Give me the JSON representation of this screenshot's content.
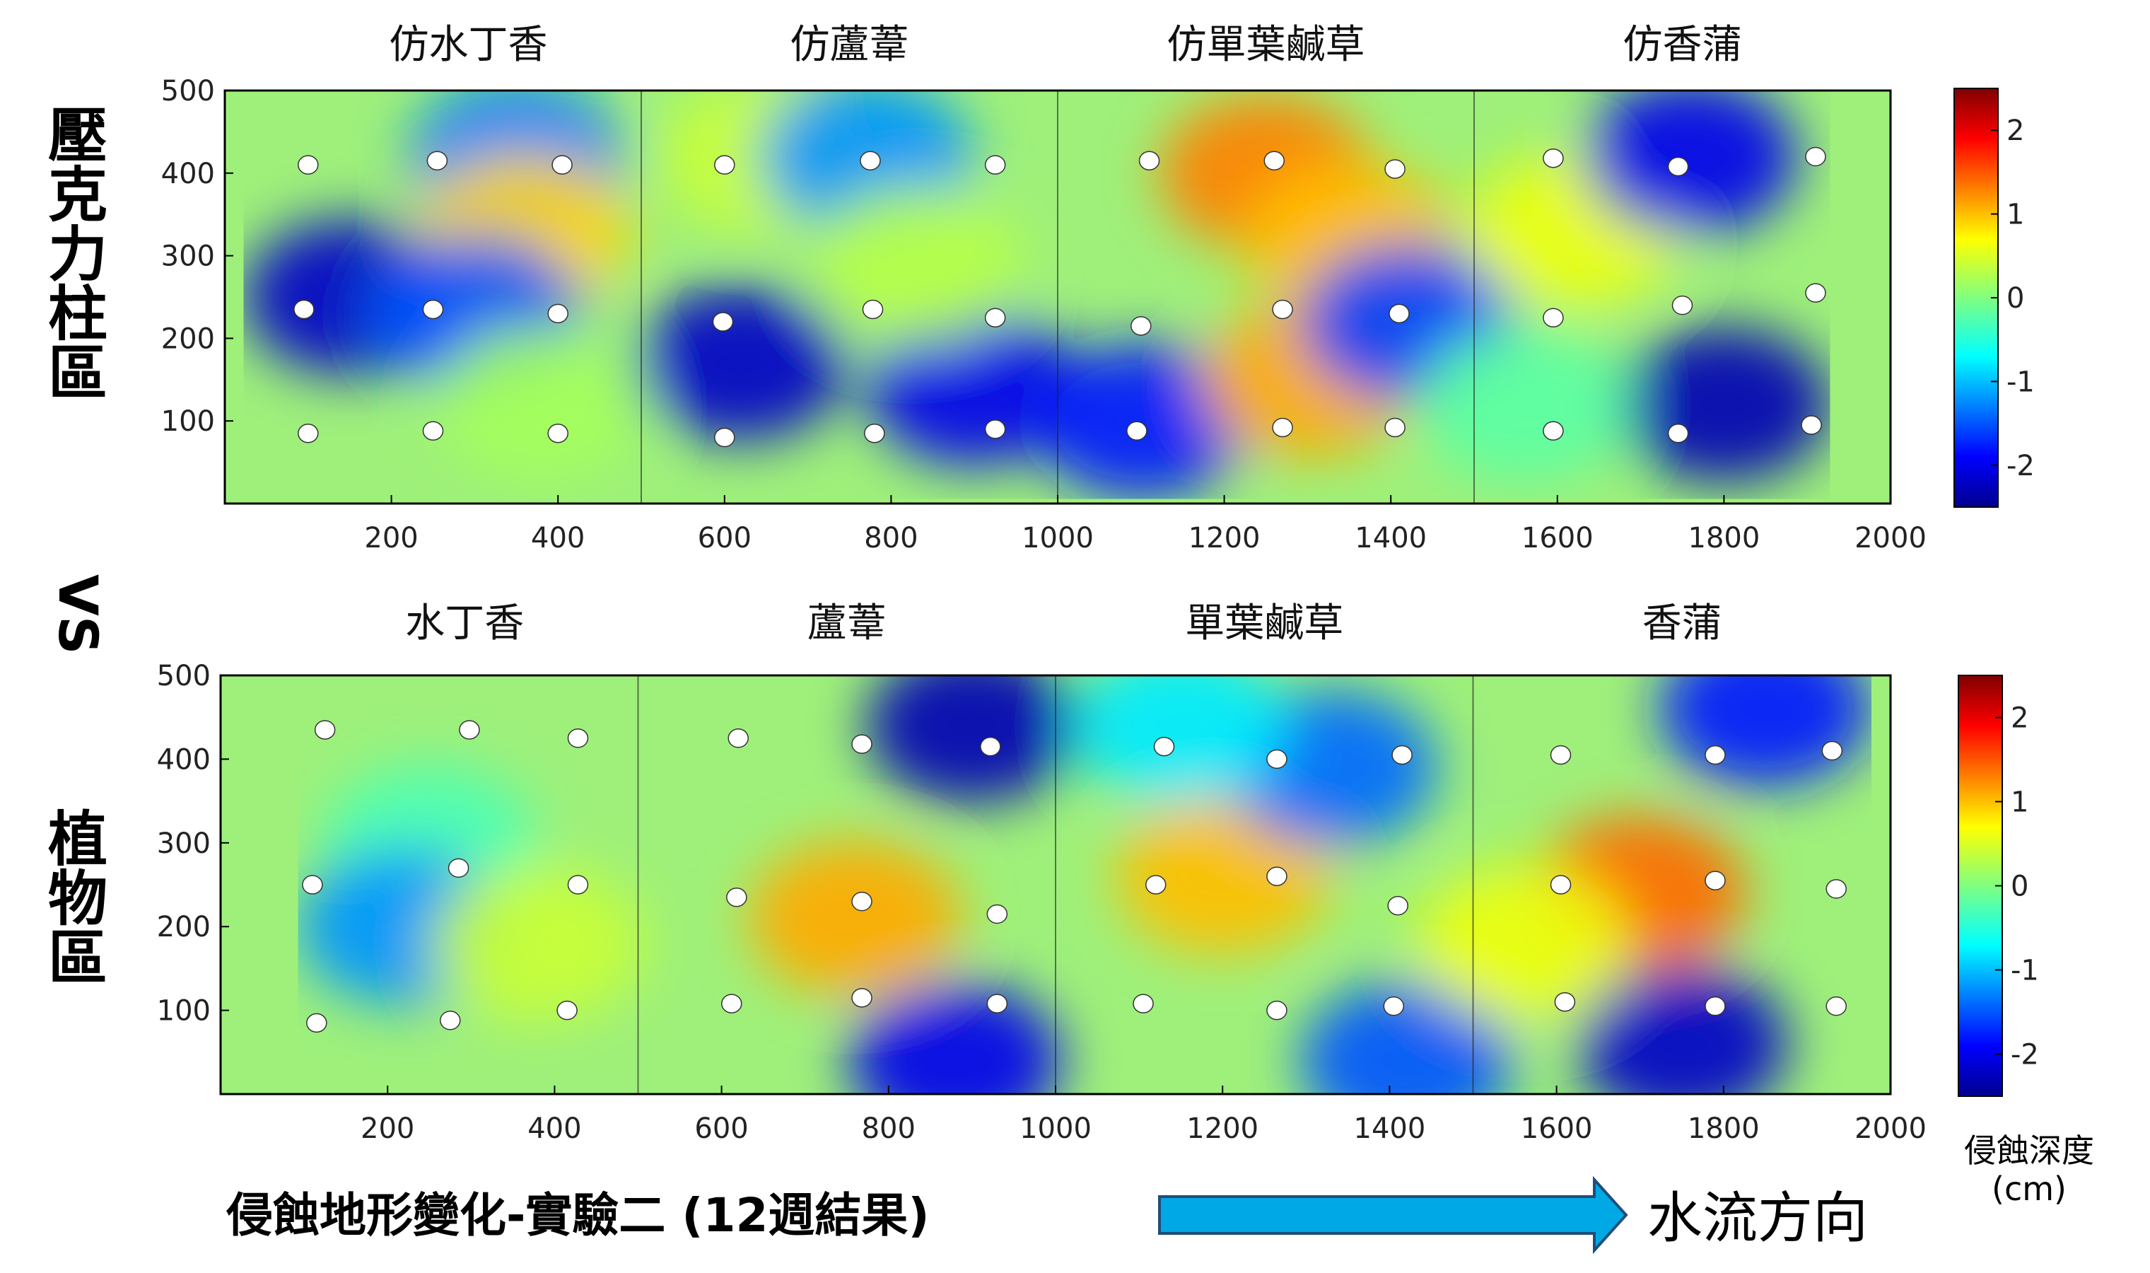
{
  "side_labels": {
    "top": [
      "壓",
      "克",
      "力",
      "柱",
      "區"
    ],
    "vs": "VS",
    "bottom": [
      "植",
      "物",
      "區"
    ]
  },
  "bottom_title": "侵蝕地形變化-實驗二 (12週結果)",
  "flow_direction": "水流方向",
  "colorbar_label_line1": "侵蝕深度",
  "colorbar_label_line2": "(cm)",
  "chart_data": [
    {
      "type": "heatmap",
      "panel": "top",
      "section_titles": [
        "仿水丁香",
        "仿蘆葦",
        "仿單葉鹹草",
        "仿香蒲"
      ],
      "xlim": [
        0,
        2000
      ],
      "ylim": [
        0,
        500
      ],
      "x_ticks": [
        200,
        400,
        600,
        800,
        1000,
        1200,
        1400,
        1600,
        1800,
        2000
      ],
      "y_ticks": [
        100,
        200,
        300,
        400,
        500
      ],
      "colorbar": {
        "range": [
          -2.5,
          2.5
        ],
        "ticks": [
          2,
          1,
          0,
          -1,
          -2
        ]
      },
      "regions": [
        {
          "x": 150,
          "y": 250,
          "value": -2.2
        },
        {
          "x": 350,
          "y": 420,
          "value": -1.3
        },
        {
          "x": 360,
          "y": 330,
          "value": 0.9
        },
        {
          "x": 300,
          "y": 230,
          "value": -1.5
        },
        {
          "x": 380,
          "y": 120,
          "value": 0.2
        },
        {
          "x": 620,
          "y": 170,
          "value": -2.2
        },
        {
          "x": 650,
          "y": 420,
          "value": 0.4
        },
        {
          "x": 770,
          "y": 420,
          "value": -1.2
        },
        {
          "x": 900,
          "y": 140,
          "value": -2.0
        },
        {
          "x": 830,
          "y": 290,
          "value": 0.3
        },
        {
          "x": 1100,
          "y": 100,
          "value": -1.8
        },
        {
          "x": 1250,
          "y": 400,
          "value": 1.3
        },
        {
          "x": 1350,
          "y": 320,
          "value": 1.0
        },
        {
          "x": 1300,
          "y": 150,
          "value": 1.1
        },
        {
          "x": 1420,
          "y": 220,
          "value": -1.6
        },
        {
          "x": 1620,
          "y": 330,
          "value": 0.6
        },
        {
          "x": 1760,
          "y": 420,
          "value": -2.0
        },
        {
          "x": 1800,
          "y": 120,
          "value": -2.3
        },
        {
          "x": 1560,
          "y": 120,
          "value": -0.2
        }
      ],
      "markers": [
        [
          100,
          410
        ],
        [
          255,
          415
        ],
        [
          405,
          410
        ],
        [
          95,
          235
        ],
        [
          250,
          235
        ],
        [
          400,
          230
        ],
        [
          100,
          85
        ],
        [
          250,
          88
        ],
        [
          400,
          85
        ],
        [
          600,
          410
        ],
        [
          775,
          415
        ],
        [
          925,
          410
        ],
        [
          598,
          220
        ],
        [
          778,
          235
        ],
        [
          925,
          225
        ],
        [
          600,
          80
        ],
        [
          780,
          85
        ],
        [
          925,
          90
        ],
        [
          1110,
          415
        ],
        [
          1260,
          415
        ],
        [
          1405,
          405
        ],
        [
          1100,
          215
        ],
        [
          1270,
          235
        ],
        [
          1410,
          230
        ],
        [
          1095,
          88
        ],
        [
          1270,
          92
        ],
        [
          1405,
          92
        ],
        [
          1595,
          418
        ],
        [
          1745,
          408
        ],
        [
          1910,
          420
        ],
        [
          1595,
          225
        ],
        [
          1750,
          240
        ],
        [
          1910,
          255
        ],
        [
          1595,
          88
        ],
        [
          1745,
          85
        ],
        [
          1905,
          95
        ]
      ]
    },
    {
      "type": "heatmap",
      "panel": "bottom",
      "section_titles": [
        "水丁香",
        "蘆葦",
        "單葉鹹草",
        "香蒲"
      ],
      "xlim": [
        0,
        2000
      ],
      "ylim": [
        0,
        500
      ],
      "x_ticks": [
        200,
        400,
        600,
        800,
        1000,
        1200,
        1400,
        1600,
        1800,
        2000
      ],
      "y_ticks": [
        100,
        200,
        300,
        400,
        500
      ],
      "colorbar": {
        "range": [
          -2.5,
          2.5
        ],
        "ticks": [
          2,
          1,
          0,
          -1,
          -2
        ]
      },
      "regions": [
        {
          "x": 250,
          "y": 300,
          "value": -0.3
        },
        {
          "x": 220,
          "y": 200,
          "value": -1.2
        },
        {
          "x": 380,
          "y": 180,
          "value": 0.4
        },
        {
          "x": 900,
          "y": 440,
          "value": -2.3
        },
        {
          "x": 760,
          "y": 210,
          "value": 1.1
        },
        {
          "x": 880,
          "y": 40,
          "value": -2.0
        },
        {
          "x": 1200,
          "y": 260,
          "value": 1.0
        },
        {
          "x": 1330,
          "y": 390,
          "value": -1.4
        },
        {
          "x": 1420,
          "y": 40,
          "value": -1.5
        },
        {
          "x": 1150,
          "y": 440,
          "value": -0.8
        },
        {
          "x": 1700,
          "y": 240,
          "value": 1.4
        },
        {
          "x": 1750,
          "y": 60,
          "value": -2.2
        },
        {
          "x": 1850,
          "y": 460,
          "value": -1.8
        },
        {
          "x": 1560,
          "y": 180,
          "value": 0.6
        }
      ],
      "markers": [
        [
          125,
          435
        ],
        [
          298,
          435
        ],
        [
          428,
          425
        ],
        [
          110,
          250
        ],
        [
          285,
          270
        ],
        [
          428,
          250
        ],
        [
          115,
          85
        ],
        [
          275,
          88
        ],
        [
          415,
          100
        ],
        [
          620,
          425
        ],
        [
          768,
          418
        ],
        [
          922,
          415
        ],
        [
          618,
          235
        ],
        [
          768,
          230
        ],
        [
          930,
          215
        ],
        [
          612,
          108
        ],
        [
          768,
          115
        ],
        [
          930,
          108
        ],
        [
          1130,
          415
        ],
        [
          1265,
          400
        ],
        [
          1415,
          405
        ],
        [
          1120,
          250
        ],
        [
          1265,
          260
        ],
        [
          1410,
          225
        ],
        [
          1105,
          108
        ],
        [
          1265,
          100
        ],
        [
          1405,
          105
        ],
        [
          1605,
          405
        ],
        [
          1790,
          405
        ],
        [
          1930,
          410
        ],
        [
          1605,
          250
        ],
        [
          1790,
          255
        ],
        [
          1935,
          245
        ],
        [
          1610,
          110
        ],
        [
          1790,
          105
        ],
        [
          1935,
          105
        ]
      ]
    }
  ]
}
